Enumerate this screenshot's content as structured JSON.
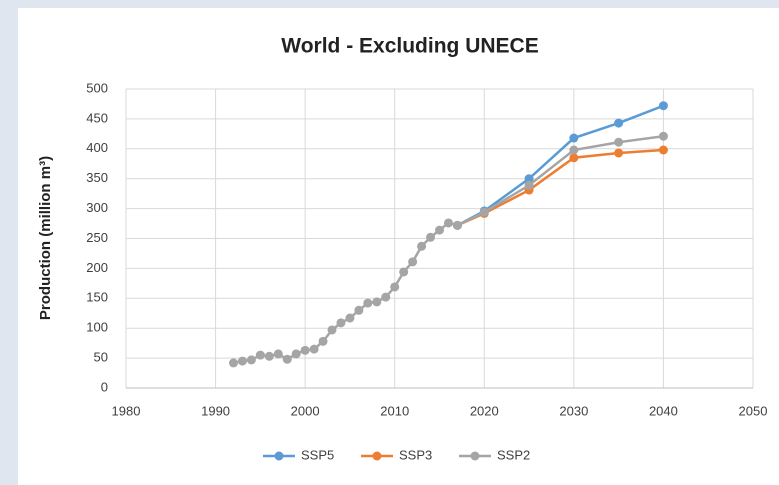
{
  "chart_data": {
    "type": "line",
    "title": "World - Excluding UNECE",
    "y_label": "Production (million m³)",
    "xlim": [
      1980,
      2050
    ],
    "xticks": [
      1980,
      1990,
      2000,
      2010,
      2020,
      2030,
      2040,
      2050
    ],
    "ylim": [
      0,
      500
    ],
    "yticks": [
      0,
      50,
      100,
      150,
      200,
      250,
      300,
      350,
      400,
      450,
      500
    ],
    "grid": true,
    "legend": "bottom",
    "series": [
      {
        "name": "SSP5",
        "color": "#5b9bd5",
        "x": [
          2017,
          2020,
          2025,
          2030,
          2035,
          2040
        ],
        "values": [
          272,
          296,
          350,
          418,
          443,
          472
        ]
      },
      {
        "name": "SSP3",
        "color": "#ed7d31",
        "x": [
          2017,
          2020,
          2025,
          2030,
          2035,
          2040
        ],
        "values": [
          272,
          292,
          331,
          385,
          393,
          398
        ]
      },
      {
        "name": "SSP2",
        "color": "#a5a5a5",
        "x": [
          1992,
          1993,
          1994,
          1995,
          1996,
          1997,
          1998,
          1999,
          2000,
          2001,
          2002,
          2003,
          2004,
          2005,
          2006,
          2007,
          2008,
          2009,
          2010,
          2011,
          2012,
          2013,
          2014,
          2015,
          2016,
          2017,
          2020,
          2025,
          2030,
          2035,
          2040
        ],
        "values": [
          42,
          45,
          47,
          55,
          53,
          57,
          48,
          57,
          63,
          65,
          78,
          97,
          109,
          117,
          130,
          142,
          144,
          152,
          169,
          194,
          211,
          237,
          252,
          264,
          276,
          272,
          294,
          339,
          398,
          411,
          421
        ]
      }
    ]
  }
}
